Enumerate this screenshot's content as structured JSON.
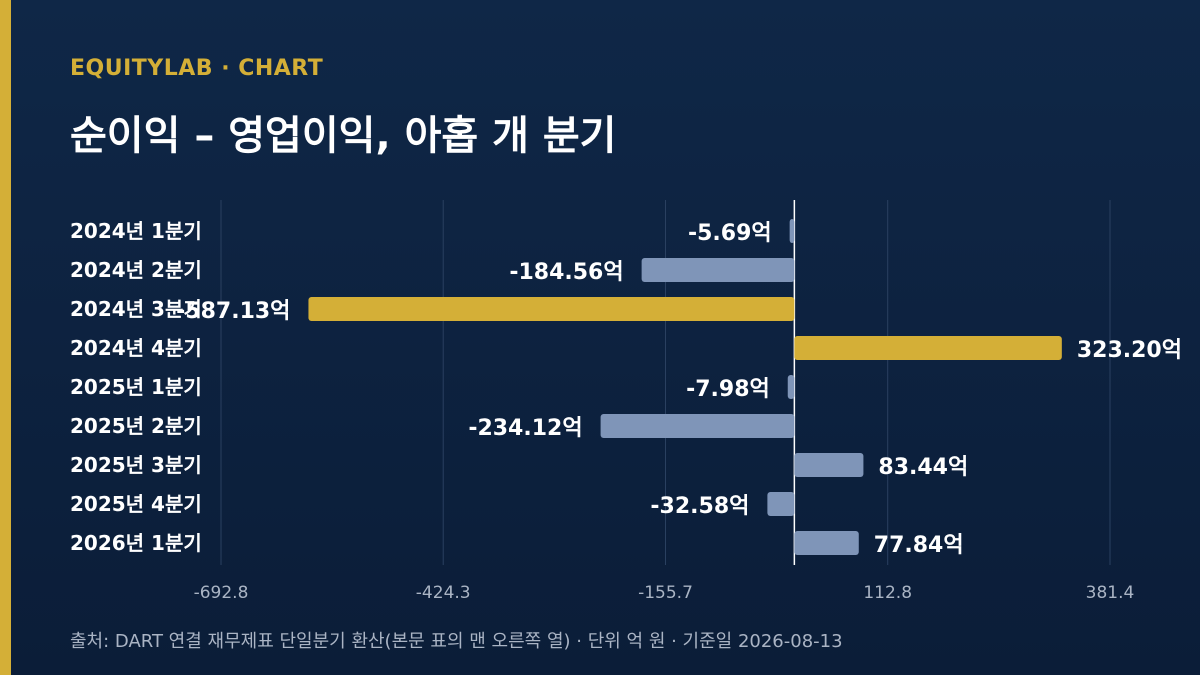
{
  "header": {
    "brand": "EQUITYLAB · CHART",
    "title": "순이익 – 영업이익, 아홉 개 분기"
  },
  "footer": {
    "source": "출처: DART 연결 재무제표 단일분기 환산(본문 표의 맨 오른쪽 열) · 단위 억 원 · 기준일 2026-08-13"
  },
  "colors": {
    "background": "#0f2747",
    "accent": "#d4af37",
    "bar_default": "#7f95b8",
    "bar_highlight": "#d4af37",
    "grid": "#2a4060",
    "axis": "#ffffff"
  },
  "chart_data": {
    "type": "bar",
    "orientation": "horizontal",
    "categories": [
      "2024년 1분기",
      "2024년 2분기",
      "2024년 3분기",
      "2024년 4분기",
      "2025년 1분기",
      "2025년 2분기",
      "2025년 3분기",
      "2025년 4분기",
      "2026년 1분기"
    ],
    "values": [
      -5.69,
      -184.56,
      -587.13,
      323.2,
      -7.98,
      -234.12,
      83.44,
      -32.58,
      77.84
    ],
    "data_labels": [
      "-5.69억",
      "-184.56억",
      "-587.13억",
      "323.20억",
      "-7.98억",
      "-234.12억",
      "83.44억",
      "-32.58억",
      "77.84억"
    ],
    "highlighted": [
      false,
      false,
      true,
      true,
      false,
      false,
      false,
      false,
      false
    ],
    "x_ticks": [
      -692.8,
      -424.3,
      -155.7,
      112.8,
      381.4
    ],
    "x_tick_labels": [
      "-692.8",
      "-424.3",
      "-155.7",
      "112.8",
      "381.4"
    ],
    "xlim": [
      -692.8,
      381.4
    ],
    "grid": true,
    "title": "순이익 – 영업이익, 아홉 개 분기"
  }
}
